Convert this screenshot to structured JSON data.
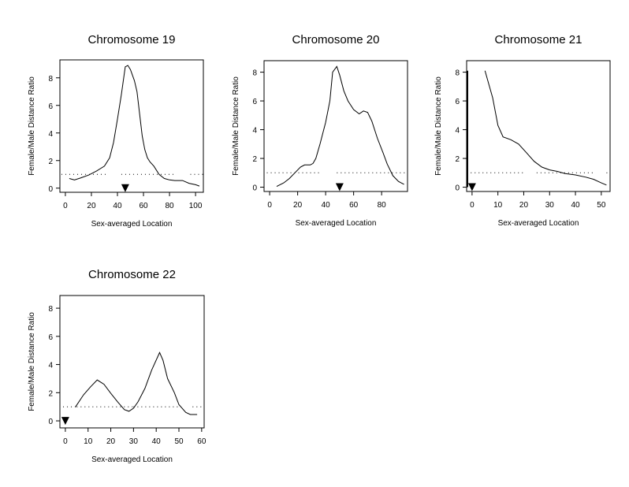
{
  "chart_data": [
    {
      "type": "line",
      "title": "Chromosome 19",
      "xlabel": "Sex-averaged Location",
      "ylabel": "Female/Male Distance Ratio",
      "xlim": [
        -4.2,
        106
      ],
      "ylim": [
        -0.3,
        9.3
      ],
      "xticks": [
        0,
        20,
        40,
        60,
        80,
        100
      ],
      "yticks": [
        0,
        2,
        4,
        6,
        8
      ],
      "grid": false,
      "reference_line": {
        "y": 1,
        "style": "dotted",
        "segments": [
          [
            -3,
            33
          ],
          [
            43,
            84
          ],
          [
            96,
            106
          ]
        ]
      },
      "marker": {
        "shape": "down-triangle",
        "x": 46
      },
      "x": [
        3,
        7,
        12,
        18,
        24,
        30,
        34,
        37,
        40,
        43,
        46,
        48,
        50,
        53,
        55,
        57,
        59,
        61,
        63,
        65,
        68,
        72,
        76,
        80,
        84,
        90,
        95,
        100,
        103
      ],
      "y": [
        0.7,
        0.6,
        0.75,
        0.95,
        1.25,
        1.6,
        2.2,
        3.3,
        5.0,
        6.8,
        8.8,
        8.9,
        8.6,
        7.8,
        7.0,
        5.4,
        3.8,
        2.8,
        2.2,
        1.9,
        1.6,
        1.0,
        0.7,
        0.6,
        0.55,
        0.55,
        0.35,
        0.25,
        0.15
      ]
    },
    {
      "type": "line",
      "title": "Chromosome 20",
      "xlabel": "Sex-averaged Location",
      "ylabel": "Female/Male Distance Ratio",
      "xlim": [
        -4,
        98.5
      ],
      "ylim": [
        -0.3,
        8.8
      ],
      "xticks": [
        0,
        20,
        40,
        60,
        80
      ],
      "yticks": [
        0,
        2,
        4,
        6,
        8
      ],
      "grid": false,
      "reference_line": {
        "y": 1,
        "style": "dotted",
        "segments": [
          [
            -2,
            36
          ],
          [
            48,
            98
          ]
        ]
      },
      "marker": {
        "shape": "down-triangle",
        "x": 50
      },
      "x": [
        5,
        10,
        14,
        18,
        22,
        25,
        29,
        31,
        33,
        36,
        40,
        43,
        45,
        48,
        50,
        53,
        56,
        60,
        64,
        67,
        70,
        73,
        77,
        81,
        84,
        88,
        92,
        96
      ],
      "y": [
        0.05,
        0.3,
        0.6,
        1.0,
        1.4,
        1.55,
        1.55,
        1.65,
        2.0,
        3.0,
        4.5,
        6.0,
        8.0,
        8.4,
        7.8,
        6.7,
        6.0,
        5.4,
        5.1,
        5.3,
        5.2,
        4.6,
        3.4,
        2.4,
        1.6,
        0.8,
        0.4,
        0.2
      ]
    },
    {
      "type": "line",
      "title": "Chromosome 21",
      "xlabel": "Sex-averaged Location",
      "ylabel": "Female/Male Distance Ratio",
      "xlim": [
        -2.1,
        53.4
      ],
      "ylim": [
        -0.3,
        8.8
      ],
      "xticks": [
        0,
        10,
        20,
        30,
        40,
        50
      ],
      "yticks": [
        0,
        2,
        4,
        6,
        8
      ],
      "grid": false,
      "reference_line": {
        "y": 1,
        "style": "dotted",
        "segments": [
          [
            -0.5,
            20
          ],
          [
            25,
            47
          ],
          [
            52,
            53
          ]
        ]
      },
      "marker": {
        "shape": "down-triangle",
        "x": 0
      },
      "left_bar": {
        "x": 0,
        "y_from": 0,
        "y_to": 8.1
      },
      "x": [
        5,
        8,
        10,
        12,
        15,
        18,
        21,
        24,
        27,
        30,
        33,
        36,
        40,
        44,
        47,
        50,
        52
      ],
      "y": [
        8.1,
        6.2,
        4.3,
        3.5,
        3.3,
        3.0,
        2.4,
        1.8,
        1.4,
        1.2,
        1.1,
        0.95,
        0.85,
        0.7,
        0.55,
        0.3,
        0.15
      ]
    },
    {
      "type": "line",
      "title": "Chromosome 22",
      "xlabel": "Sex-averaged Location",
      "ylabel": "Female/Male Distance Ratio",
      "xlim": [
        -2.4,
        61.1
      ],
      "ylim": [
        -0.5,
        8.9
      ],
      "xticks": [
        0,
        10,
        20,
        30,
        40,
        50,
        60
      ],
      "yticks": [
        0,
        2,
        4,
        6,
        8
      ],
      "grid": false,
      "reference_line": {
        "y": 1,
        "style": "dotted",
        "segments": [
          [
            -1,
            5
          ],
          [
            5,
            30
          ],
          [
            30,
            50
          ],
          [
            56,
            61
          ]
        ]
      },
      "marker": {
        "shape": "down-triangle",
        "x": 0
      },
      "x": [
        4.5,
        8,
        11,
        14,
        17,
        20,
        23,
        26,
        28,
        30,
        32,
        35,
        38,
        41.5,
        43,
        45,
        48,
        50,
        53,
        55,
        58
      ],
      "y": [
        1.0,
        1.85,
        2.4,
        2.9,
        2.6,
        1.95,
        1.35,
        0.8,
        0.68,
        0.9,
        1.35,
        2.3,
        3.6,
        4.85,
        4.3,
        3.0,
        2.0,
        1.15,
        0.6,
        0.45,
        0.45
      ]
    }
  ]
}
